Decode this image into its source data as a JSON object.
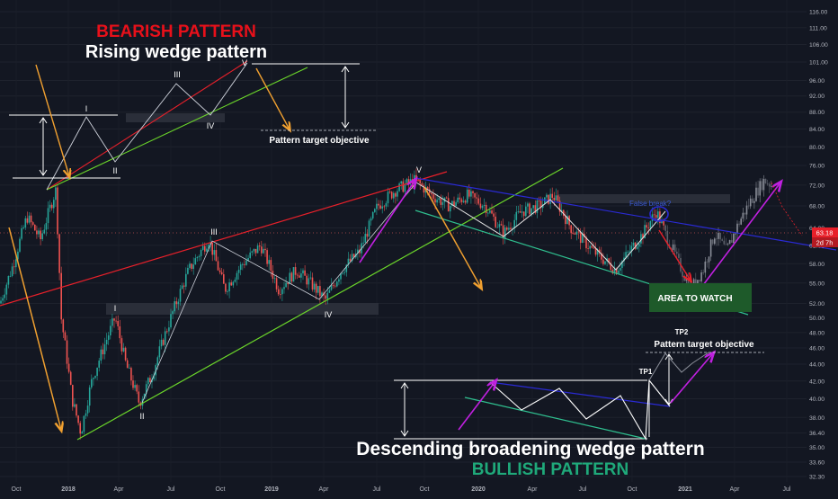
{
  "chart_data": {
    "type": "candlestick",
    "titles": {
      "bearish": "BEARISH PATTERN",
      "rising_wedge": "Rising wedge pattern",
      "descending_wedge": "Descending broadening wedge pattern",
      "bullish": "BULLISH PATTERN"
    },
    "annotations": {
      "pattern_target_top": "Pattern target objective",
      "pattern_target_bottom": "Pattern target objective",
      "tp1": "TP1",
      "tp2": "TP2",
      "area_to_watch": "AREA TO WATCH",
      "false_break": "False break?",
      "wave_labels": [
        "I",
        "II",
        "III",
        "IV",
        "V"
      ]
    },
    "y_axis": {
      "scale": "log",
      "ticks": [
        "116.00",
        "111.00",
        "106.00",
        "101.00",
        "96.00",
        "92.00",
        "88.00",
        "84.00",
        "80.00",
        "76.00",
        "72.00",
        "68.00",
        "64.00",
        "61.00",
        "58.00",
        "55.00",
        "52.00",
        "50.00",
        "48.00",
        "46.00",
        "44.00",
        "42.00",
        "40.00",
        "38.00",
        "36.40",
        "35.00",
        "33.60",
        "32.30"
      ],
      "price_badge": "63.18",
      "time_badge": "2d 7h"
    },
    "x_axis": {
      "ticks": [
        "Oct",
        "2018",
        "Apr",
        "Jul",
        "Oct",
        "2019",
        "Apr",
        "Jul",
        "Oct",
        "2020",
        "Apr",
        "Jul",
        "Oct",
        "2021",
        "Apr",
        "Jul"
      ]
    },
    "price_path": [
      [
        0,
        52
      ],
      [
        15,
        58
      ],
      [
        30,
        66
      ],
      [
        45,
        62
      ],
      [
        62,
        71
      ],
      [
        68,
        50
      ],
      [
        80,
        40
      ],
      [
        90,
        36.4
      ],
      [
        102,
        42
      ],
      [
        115,
        46
      ],
      [
        128,
        50
      ],
      [
        140,
        44
      ],
      [
        155,
        39.5
      ],
      [
        170,
        43
      ],
      [
        190,
        50
      ],
      [
        210,
        57
      ],
      [
        232,
        62
      ],
      [
        250,
        54
      ],
      [
        270,
        58
      ],
      [
        290,
        61
      ],
      [
        310,
        54
      ],
      [
        330,
        57
      ],
      [
        345,
        55
      ],
      [
        362,
        52.5
      ],
      [
        380,
        57
      ],
      [
        400,
        60
      ],
      [
        420,
        68
      ],
      [
        440,
        71
      ],
      [
        462,
        73
      ],
      [
        480,
        70
      ],
      [
        500,
        68
      ],
      [
        520,
        70
      ],
      [
        540,
        68
      ],
      [
        560,
        63
      ],
      [
        580,
        67
      ],
      [
        600,
        68
      ],
      [
        615,
        70
      ],
      [
        635,
        64
      ],
      [
        660,
        60
      ],
      [
        685,
        57
      ],
      [
        700,
        60
      ],
      [
        715,
        63
      ],
      [
        730,
        67
      ],
      [
        740,
        63
      ],
      [
        755,
        58
      ],
      [
        768,
        54
      ],
      [
        782,
        57
      ],
      [
        795,
        63
      ],
      [
        808,
        60
      ],
      [
        822,
        65
      ],
      [
        835,
        69
      ],
      [
        850,
        73
      ],
      [
        858,
        72
      ]
    ],
    "colors": {
      "background": "#131722",
      "up": "#26a69a",
      "down": "#ef5350",
      "red_line": "#e8202a",
      "green_line": "#6bd62a",
      "blue_line": "#2a2ad4",
      "teal_line": "#2fbf8f",
      "orange": "#f0a030",
      "magenta": "#c020e0",
      "bearish_text": "#e8101a",
      "bullish_text": "#1fa97a",
      "watch_box": "#1e5a2a"
    }
  }
}
